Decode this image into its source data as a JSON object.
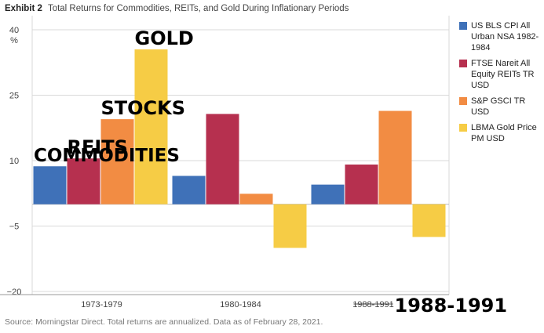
{
  "title": {
    "lead": "Exhibit 2",
    "text": "Total Returns for Commodities, REITs, and Gold During Inflationary Periods"
  },
  "source": "Source: Morningstar Direct. Total returns are annualized.  Data as of February 28, 2021.",
  "colors": {
    "cpi": "#3f71b8",
    "reits": "#b6304f",
    "gsci": "#f28c43",
    "gold": "#f6cc45",
    "grid": "#d9d9d9",
    "axis": "#999999"
  },
  "chart_data": {
    "type": "bar",
    "categories": [
      "1973-1979",
      "1980-1984",
      "1988-1991"
    ],
    "category_overlay": {
      "index": 2,
      "struck_text": "1988-1991",
      "big_text": "1988-1991"
    },
    "y_unit": "%",
    "ylim": [
      -20,
      40
    ],
    "yticks": [
      40,
      25,
      10,
      -5,
      -20
    ],
    "grid": true,
    "legend_position": "right",
    "series": [
      {
        "name": "US BLS CPI All Urban NSA 1982-1984",
        "color": "#3f71b8",
        "values": [
          8.7,
          6.5,
          4.5
        ]
      },
      {
        "name": "FTSE Nareit All Equity REITs TR USD",
        "color": "#b6304f",
        "values": [
          10.5,
          20.7,
          9.1
        ]
      },
      {
        "name": "S&P GSCI TR USD",
        "color": "#f28c43",
        "values": [
          19.5,
          2.4,
          21.4
        ]
      },
      {
        "name": "LBMA Gold Price PM USD",
        "color": "#f6cc45",
        "values": [
          35.5,
          -10.0,
          -7.5
        ]
      }
    ],
    "annotations": [
      {
        "text": "GOLD",
        "series": 3,
        "category": 0
      },
      {
        "text": "STOCKS",
        "series": 2,
        "category": 0
      },
      {
        "text": "REITS",
        "series": 1,
        "category": 0
      },
      {
        "text": "COMMODITIES",
        "series": 0,
        "category": 0
      }
    ]
  }
}
